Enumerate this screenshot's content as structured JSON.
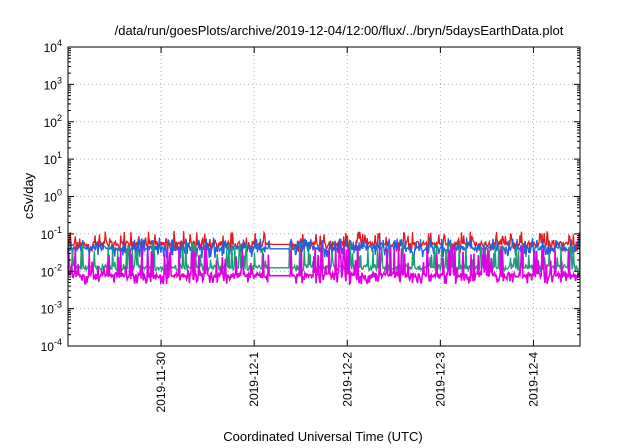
{
  "chart_data": {
    "type": "line",
    "title": "/data/run/goesPlots/archive/2019-12-04/12:00/flux/../bryn/5daysEarthData.plot",
    "xlabel": "Coordinated Universal Time (UTC)",
    "ylabel": "cSv/day",
    "yscale": "log",
    "ylim_exponents": [
      -4,
      4
    ],
    "y_tick_labels": [
      {
        "base": "10",
        "exp": "-4"
      },
      {
        "base": "10",
        "exp": "-3"
      },
      {
        "base": "10",
        "exp": "-2"
      },
      {
        "base": "10",
        "exp": "-1"
      },
      {
        "base": "10",
        "exp": "0"
      },
      {
        "base": "10",
        "exp": "1"
      },
      {
        "base": "10",
        "exp": "2"
      },
      {
        "base": "10",
        "exp": "3"
      },
      {
        "base": "10",
        "exp": "4"
      }
    ],
    "x_range_days": [
      "2019-11-29T00:00",
      "2019-12-04T12:00"
    ],
    "x_ticks": [
      "2019-11-30",
      "2019-12-1",
      "2019-12-2",
      "2019-12-3",
      "2019-12-4"
    ],
    "grid": true,
    "legend": "none",
    "gap": [
      "2019-12-01T04:00",
      "2019-12-01T09:00"
    ],
    "series": [
      {
        "color": "#e41a1c",
        "baseline": 0.055,
        "spike_max": 0.12,
        "dip_min": 0.03
      },
      {
        "color": "#2060e0",
        "baseline": 0.042,
        "spike_max": 0.08,
        "dip_min": 0.022
      },
      {
        "color": "#1a9e77",
        "baseline": 0.013,
        "spike_max": 0.06,
        "dip_min": 0.01
      },
      {
        "color": "#e000e0",
        "baseline": 0.008,
        "spike_max": 0.05,
        "dip_min": 0.0045
      }
    ]
  }
}
